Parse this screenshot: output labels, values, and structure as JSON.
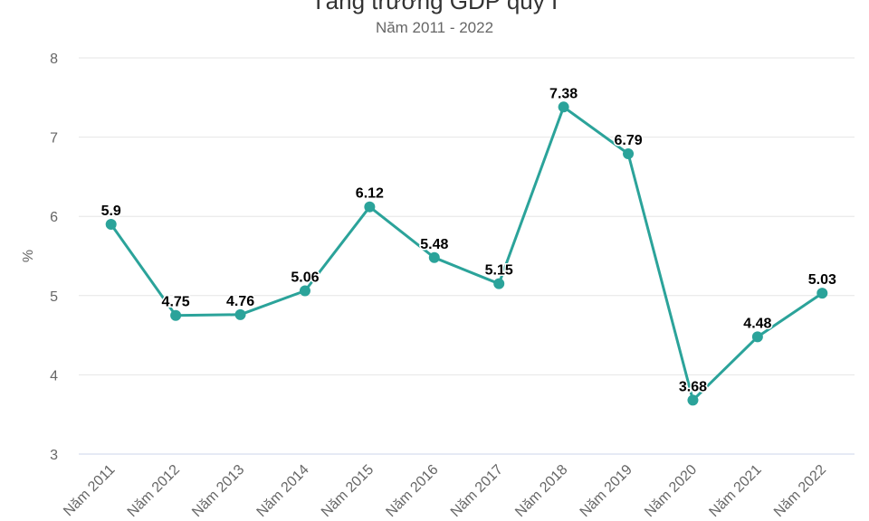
{
  "chart_data": {
    "type": "line",
    "title": "Tăng trưởng GDP quý I",
    "subtitle": "Năm 2011 - 2022",
    "ylabel": "%",
    "xlabel": "",
    "ylim": [
      3,
      8
    ],
    "yticks": [
      3,
      4,
      5,
      6,
      7,
      8
    ],
    "grid": true,
    "categories": [
      "Năm 2011",
      "Năm 2012",
      "Năm 2013",
      "Năm 2014",
      "Năm 2015",
      "Năm 2016",
      "Năm 2017",
      "Năm 2018",
      "Năm 2019",
      "Năm 2020",
      "Năm 2021",
      "Năm 2022"
    ],
    "series": [
      {
        "values": [
          5.9,
          4.75,
          4.76,
          5.06,
          6.12,
          5.48,
          5.15,
          7.38,
          6.79,
          3.68,
          4.48,
          5.03
        ],
        "color": "#2ba39a"
      }
    ],
    "gridColor": "#e6e6e6",
    "axisColor": "#ccd6eb"
  }
}
